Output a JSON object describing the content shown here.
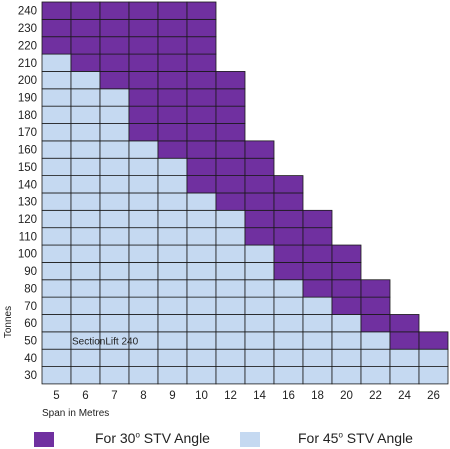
{
  "chart_data": {
    "type": "heatmap",
    "ylabel": "Tonnes",
    "xlabel": "Span in Metres",
    "annotation": "SectionLift 240",
    "x": [
      5,
      6,
      7,
      8,
      9,
      10,
      12,
      14,
      16,
      18,
      20,
      22,
      24,
      26
    ],
    "y": [
      30,
      40,
      50,
      60,
      70,
      80,
      90,
      100,
      110,
      120,
      130,
      140,
      150,
      160,
      170,
      180,
      190,
      200,
      210,
      220,
      230,
      240
    ],
    "max_tonnes_45": [
      210,
      200,
      190,
      160,
      150,
      130,
      120,
      100,
      80,
      70,
      60,
      50,
      40,
      40
    ],
    "max_tonnes_30": [
      240,
      240,
      240,
      240,
      240,
      240,
      200,
      160,
      140,
      120,
      100,
      80,
      60,
      50
    ],
    "series": [
      {
        "name": "For 30° STV Angle",
        "color": "#7030a0"
      },
      {
        "name": "For 45° STV Angle",
        "color": "#c5d9f1"
      }
    ],
    "grid": true
  },
  "legend": {
    "purple_prefix": "For 30",
    "purple_sup": "o",
    "purple_suffix": " STV Angle",
    "blue_prefix": "For 45",
    "blue_sup": "o",
    "blue_suffix": " STV Angle"
  }
}
